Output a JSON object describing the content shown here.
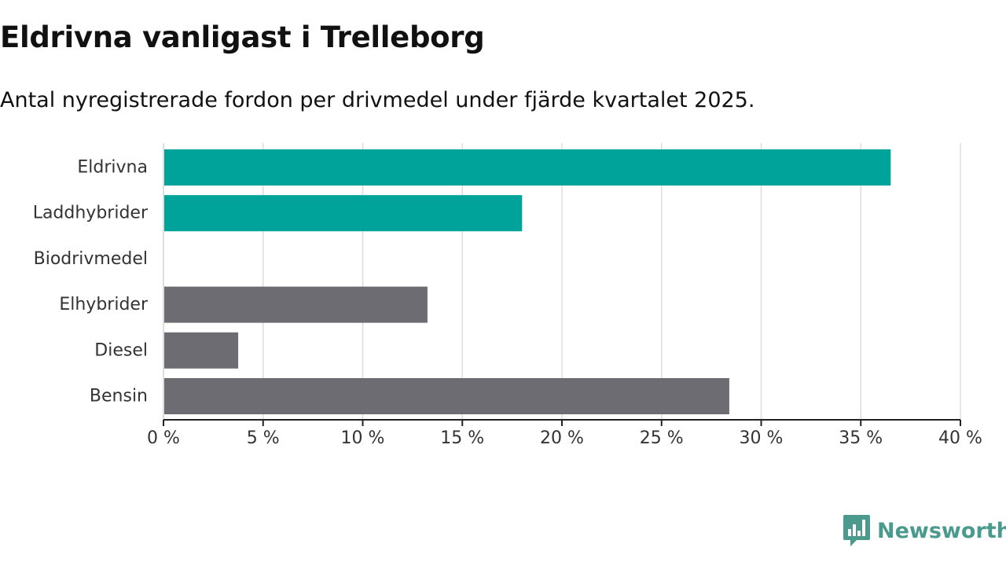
{
  "title": "Eldrivna vanligast i Trelleborg",
  "subtitle": "Antal nyregistrerade fordon per drivmedel under fjärde kvartalet 2025.",
  "brand": {
    "name": "Newsworthy",
    "icon": "newsworthy-logo-icon",
    "color": "#4a9a8e"
  },
  "chart_data": {
    "type": "bar",
    "orientation": "horizontal",
    "title": "Eldrivna vanligast i Trelleborg",
    "subtitle": "Antal nyregistrerade fordon per drivmedel under fjärde kvartalet 2025.",
    "categories": [
      "Eldrivna",
      "Laddhybrider",
      "Biodrivmedel",
      "Elhybrider",
      "Diesel",
      "Bensin"
    ],
    "values": [
      36.5,
      18.0,
      0,
      13.25,
      3.75,
      28.4
    ],
    "colors": [
      "#00a39a",
      "#00a39a",
      "#00a39a",
      "#6e6c73",
      "#6e6c73",
      "#6e6c73"
    ],
    "xlim": [
      0,
      40
    ],
    "ticks": [
      0,
      5,
      10,
      15,
      20,
      25,
      30,
      35,
      40
    ],
    "tick_labels": [
      "0 %",
      "5 %",
      "10 %",
      "15 %",
      "20 %",
      "25 %",
      "30 %",
      "35 %",
      "40 %"
    ],
    "xlabel": "",
    "ylabel": "",
    "grid": true
  }
}
